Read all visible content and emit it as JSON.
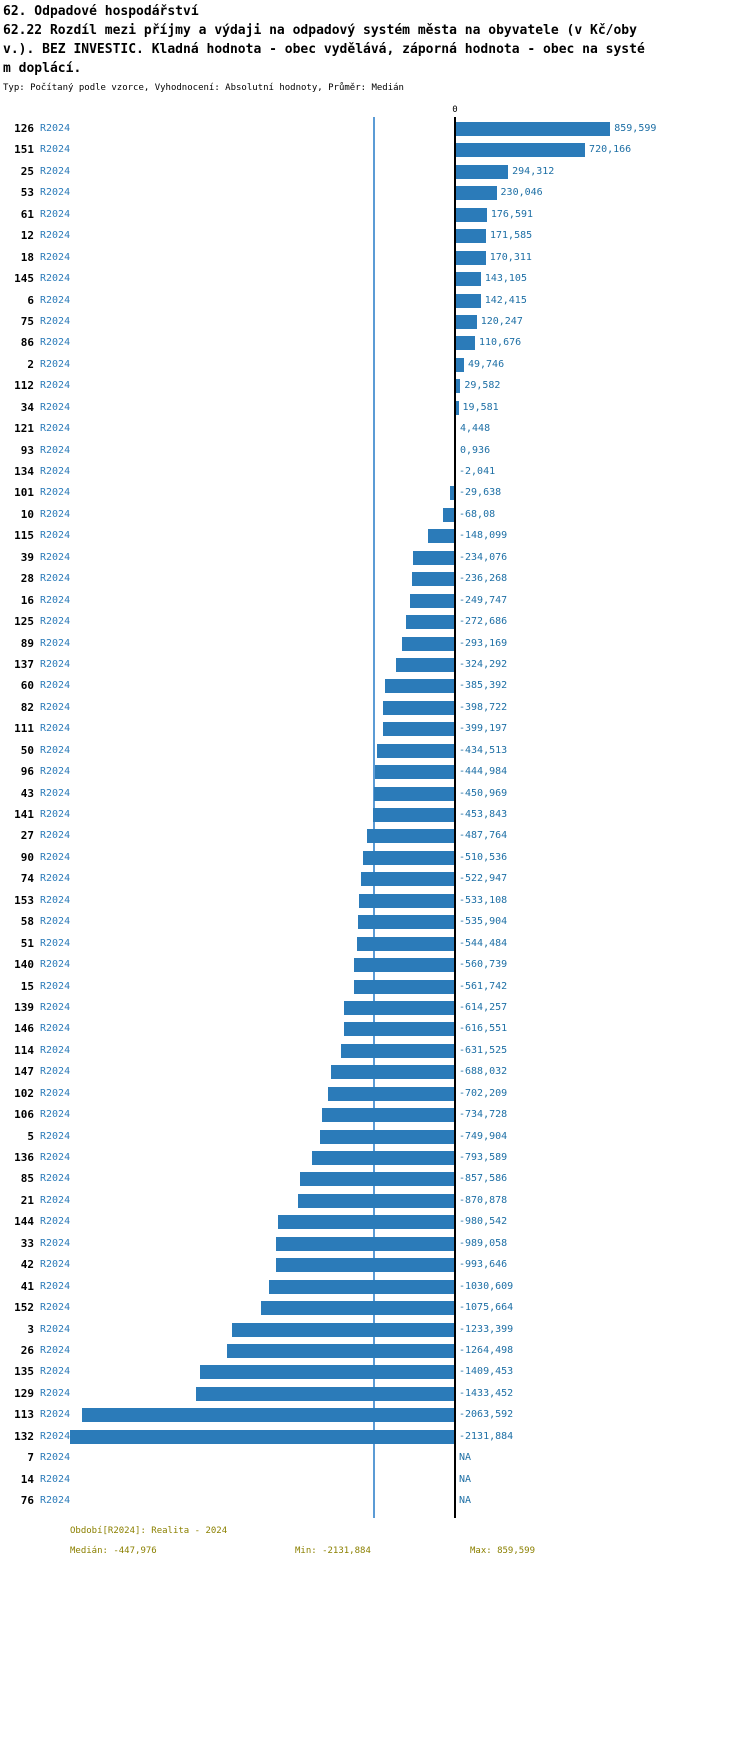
{
  "header": {
    "title": "62. Odpadové hospodářství",
    "subtitle": "62.22 Rozdíl mezi příjmy a výdaji na odpadový systém města na obyvatele (v Kč/obyv.). BEZ INVESTIC. Kladná hodnota - obec vydělává, záporná hodnota - obec na systém doplácí.",
    "meta": "Typ: Počítaný podle vzorce, Vyhodnocení: Absolutní hodnoty, Průměr: Medián"
  },
  "chart_data": {
    "type": "bar",
    "orientation": "horizontal",
    "title": "62. Odpadové hospodářství",
    "period_label": "R2024",
    "zero_label": "0",
    "xlim": [
      -2520,
      1635
    ],
    "grid": false,
    "legend": false,
    "colors": {
      "bar": "#2b7bb9",
      "period_text": "#2b7bb9",
      "value_text": "#1d6fa5",
      "median_line": "#5b9bd5",
      "axis_line": "#000000",
      "footer_text": "#8b8000"
    },
    "rows": [
      {
        "id": "126",
        "value": 859.599,
        "label": "859,599"
      },
      {
        "id": "151",
        "value": 720.166,
        "label": "720,166"
      },
      {
        "id": "25",
        "value": 294.312,
        "label": "294,312"
      },
      {
        "id": "53",
        "value": 230.046,
        "label": "230,046"
      },
      {
        "id": "61",
        "value": 176.591,
        "label": "176,591"
      },
      {
        "id": "12",
        "value": 171.585,
        "label": "171,585"
      },
      {
        "id": "18",
        "value": 170.311,
        "label": "170,311"
      },
      {
        "id": "145",
        "value": 143.105,
        "label": "143,105"
      },
      {
        "id": "6",
        "value": 142.415,
        "label": "142,415"
      },
      {
        "id": "75",
        "value": 120.247,
        "label": "120,247"
      },
      {
        "id": "86",
        "value": 110.676,
        "label": "110,676"
      },
      {
        "id": "2",
        "value": 49.746,
        "label": "49,746"
      },
      {
        "id": "112",
        "value": 29.582,
        "label": "29,582"
      },
      {
        "id": "34",
        "value": 19.581,
        "label": "19,581"
      },
      {
        "id": "121",
        "value": 4.448,
        "label": "4,448"
      },
      {
        "id": "93",
        "value": 0.936,
        "label": "0,936"
      },
      {
        "id": "134",
        "value": -2.041,
        "label": "-2,041"
      },
      {
        "id": "101",
        "value": -29.638,
        "label": "-29,638"
      },
      {
        "id": "10",
        "value": -68.08,
        "label": "-68,08"
      },
      {
        "id": "115",
        "value": -148.099,
        "label": "-148,099"
      },
      {
        "id": "39",
        "value": -234.076,
        "label": "-234,076"
      },
      {
        "id": "28",
        "value": -236.268,
        "label": "-236,268"
      },
      {
        "id": "16",
        "value": -249.747,
        "label": "-249,747"
      },
      {
        "id": "125",
        "value": -272.686,
        "label": "-272,686"
      },
      {
        "id": "89",
        "value": -293.169,
        "label": "-293,169"
      },
      {
        "id": "137",
        "value": -324.292,
        "label": "-324,292"
      },
      {
        "id": "60",
        "value": -385.392,
        "label": "-385,392"
      },
      {
        "id": "82",
        "value": -398.722,
        "label": "-398,722"
      },
      {
        "id": "111",
        "value": -399.197,
        "label": "-399,197"
      },
      {
        "id": "50",
        "value": -434.513,
        "label": "-434,513"
      },
      {
        "id": "96",
        "value": -444.984,
        "label": "-444,984"
      },
      {
        "id": "43",
        "value": -450.969,
        "label": "-450,969"
      },
      {
        "id": "141",
        "value": -453.843,
        "label": "-453,843"
      },
      {
        "id": "27",
        "value": -487.764,
        "label": "-487,764"
      },
      {
        "id": "90",
        "value": -510.536,
        "label": "-510,536"
      },
      {
        "id": "74",
        "value": -522.947,
        "label": "-522,947"
      },
      {
        "id": "153",
        "value": -533.108,
        "label": "-533,108"
      },
      {
        "id": "58",
        "value": -535.904,
        "label": "-535,904"
      },
      {
        "id": "51",
        "value": -544.484,
        "label": "-544,484"
      },
      {
        "id": "140",
        "value": -560.739,
        "label": "-560,739"
      },
      {
        "id": "15",
        "value": -561.742,
        "label": "-561,742"
      },
      {
        "id": "139",
        "value": -614.257,
        "label": "-614,257"
      },
      {
        "id": "146",
        "value": -616.551,
        "label": "-616,551"
      },
      {
        "id": "114",
        "value": -631.525,
        "label": "-631,525"
      },
      {
        "id": "147",
        "value": -688.032,
        "label": "-688,032"
      },
      {
        "id": "102",
        "value": -702.209,
        "label": "-702,209"
      },
      {
        "id": "106",
        "value": -734.728,
        "label": "-734,728"
      },
      {
        "id": "5",
        "value": -749.904,
        "label": "-749,904"
      },
      {
        "id": "136",
        "value": -793.589,
        "label": "-793,589"
      },
      {
        "id": "85",
        "value": -857.586,
        "label": "-857,586"
      },
      {
        "id": "21",
        "value": -870.878,
        "label": "-870,878"
      },
      {
        "id": "144",
        "value": -980.542,
        "label": "-980,542"
      },
      {
        "id": "33",
        "value": -989.058,
        "label": "-989,058"
      },
      {
        "id": "42",
        "value": -993.646,
        "label": "-993,646"
      },
      {
        "id": "41",
        "value": -1030.609,
        "label": "-1030,609"
      },
      {
        "id": "152",
        "value": -1075.664,
        "label": "-1075,664"
      },
      {
        "id": "3",
        "value": -1233.399,
        "label": "-1233,399"
      },
      {
        "id": "26",
        "value": -1264.498,
        "label": "-1264,498"
      },
      {
        "id": "135",
        "value": -1409.453,
        "label": "-1409,453"
      },
      {
        "id": "129",
        "value": -1433.452,
        "label": "-1433,452"
      },
      {
        "id": "113",
        "value": -2063.592,
        "label": "-2063,592"
      },
      {
        "id": "132",
        "value": -2131.884,
        "label": "-2131,884"
      },
      {
        "id": "7",
        "value": null,
        "label": "NA"
      },
      {
        "id": "14",
        "value": null,
        "label": "NA"
      },
      {
        "id": "76",
        "value": null,
        "label": "NA"
      }
    ],
    "stats": {
      "median": -447.976,
      "min": -2131.884,
      "max": 859.599
    },
    "footer": {
      "period": "Období[R2024]: Realita - 2024",
      "median": "Medián: -447,976",
      "min": "Min: -2131,884",
      "max": "Max: 859,599"
    }
  }
}
